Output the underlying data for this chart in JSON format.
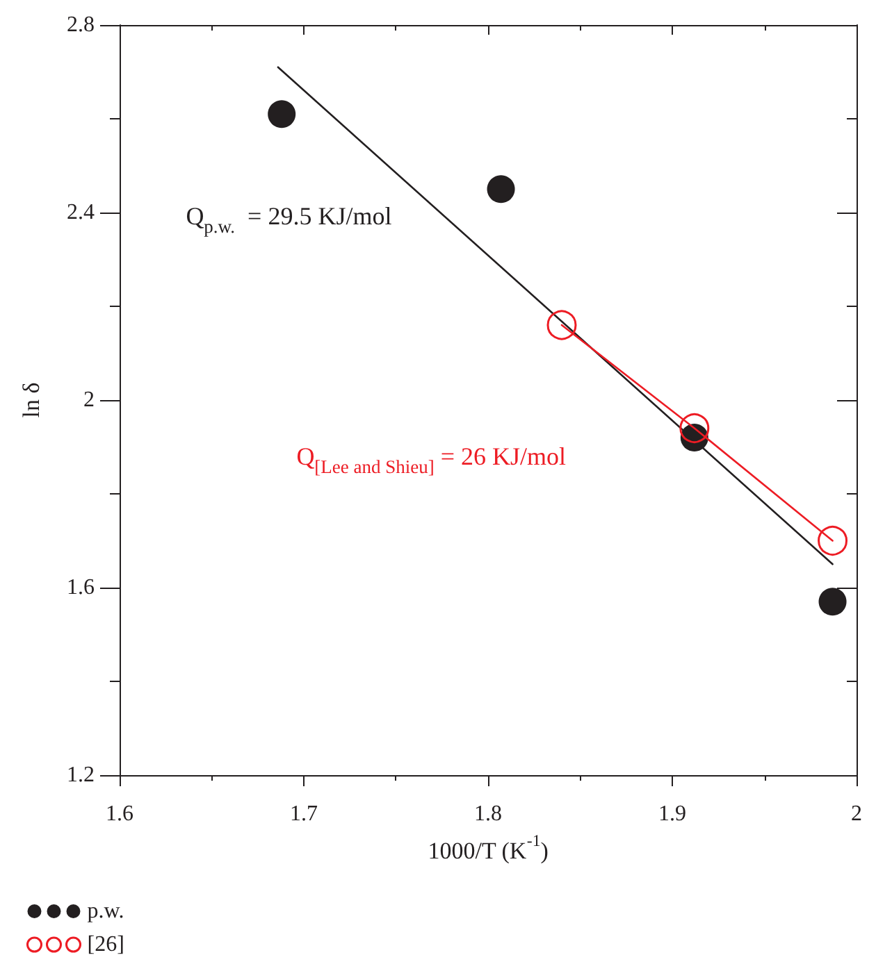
{
  "chart_data": {
    "type": "scatter",
    "xlabel": "1000/T (K$^{-1}$)",
    "ylabel": "ln δ",
    "xlim": [
      1.6,
      2.0
    ],
    "xticks": [
      1.6,
      1.7,
      1.8,
      1.9,
      {
        "value": 2.0,
        "label": "2"
      }
    ],
    "ylim": [
      1.2,
      2.8
    ],
    "yticks": [
      1.2,
      1.6,
      {
        "value": 2.0,
        "label": "2"
      },
      2.4,
      2.8
    ],
    "grid": false,
    "legend": "bottom left",
    "series": [
      {
        "name": "p.w.",
        "color": "#231f20",
        "marker": "circle",
        "x": [
          1.688,
          1.807,
          1.912,
          1.987
        ],
        "values": [
          2.61,
          2.45,
          1.92,
          1.57
        ]
      },
      {
        "type": "line",
        "color": "#231f20",
        "marker": "none",
        "x": [
          1.686,
          1.987
        ],
        "values": [
          2.71,
          1.65
        ]
      },
      {
        "name": "[26]",
        "type": "line",
        "color": "#ed1c24",
        "marker": "circle",
        "x": [
          1.84,
          1.912,
          1.987
        ],
        "values": [
          2.16,
          1.94,
          1.7
        ]
      }
    ],
    "annotations": [
      "Q$_{p.w.}$  = 29.5 KJ/mol",
      "Q$_{[Lee and Shieu]}$ = 26 KJ/mol"
    ]
  }
}
